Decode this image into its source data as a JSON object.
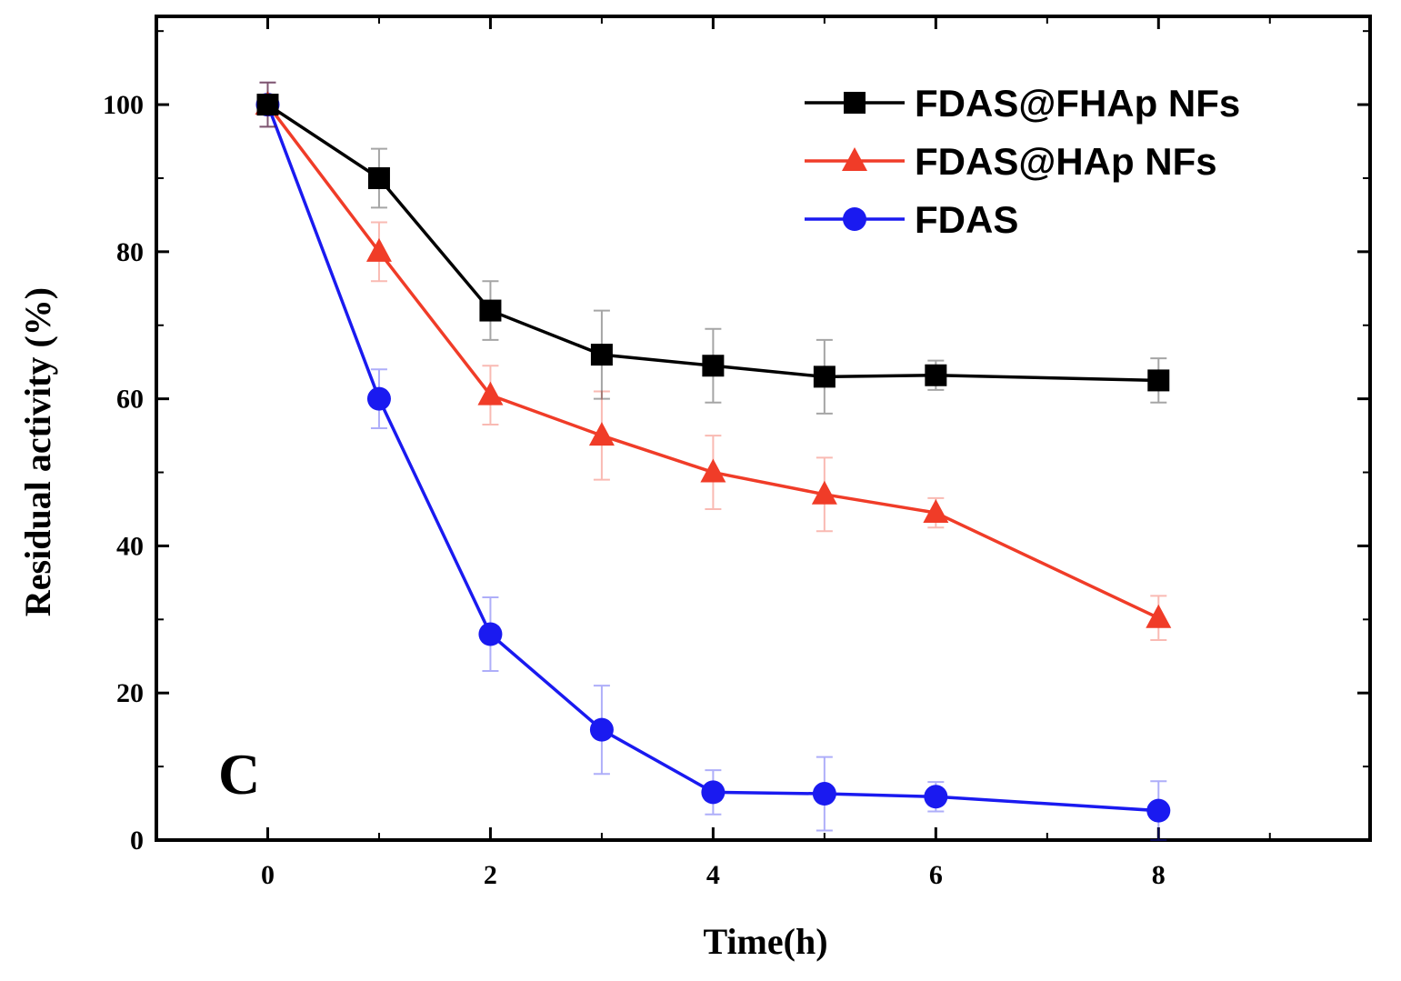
{
  "chart_data": {
    "type": "line",
    "title": "",
    "panel_label": "C",
    "xlabel": "Time(h)",
    "ylabel": "Residual activity (%)",
    "xlim": [
      -1,
      9.9
    ],
    "ylim": [
      0,
      112
    ],
    "xticks": [
      0,
      2,
      4,
      6,
      8
    ],
    "yticks": [
      0,
      20,
      40,
      60,
      80,
      100
    ],
    "legend_position": "top-right",
    "x": [
      0,
      1,
      2,
      3,
      4,
      5,
      6,
      8
    ],
    "series": [
      {
        "name": "FDAS@FHAp NFs",
        "color": "#000000",
        "marker": "square",
        "values": [
          100,
          90,
          72,
          66,
          64.5,
          63,
          63.2,
          62.5
        ],
        "errors": [
          3,
          4,
          4,
          6,
          5,
          5,
          2,
          3
        ]
      },
      {
        "name": "FDAS@HAp NFs",
        "color": "#f03c28",
        "marker": "triangle",
        "values": [
          100,
          80,
          60.5,
          55,
          50,
          47,
          44.5,
          30.2
        ],
        "errors": [
          3,
          4,
          4,
          6,
          5,
          5,
          2,
          3
        ]
      },
      {
        "name": "FDAS",
        "color": "#1a1af0",
        "marker": "circle",
        "values": [
          100,
          60,
          28,
          15,
          6.5,
          6.3,
          5.9,
          4
        ],
        "errors": [
          3,
          4,
          5,
          6,
          3,
          5,
          2,
          4
        ]
      }
    ]
  }
}
